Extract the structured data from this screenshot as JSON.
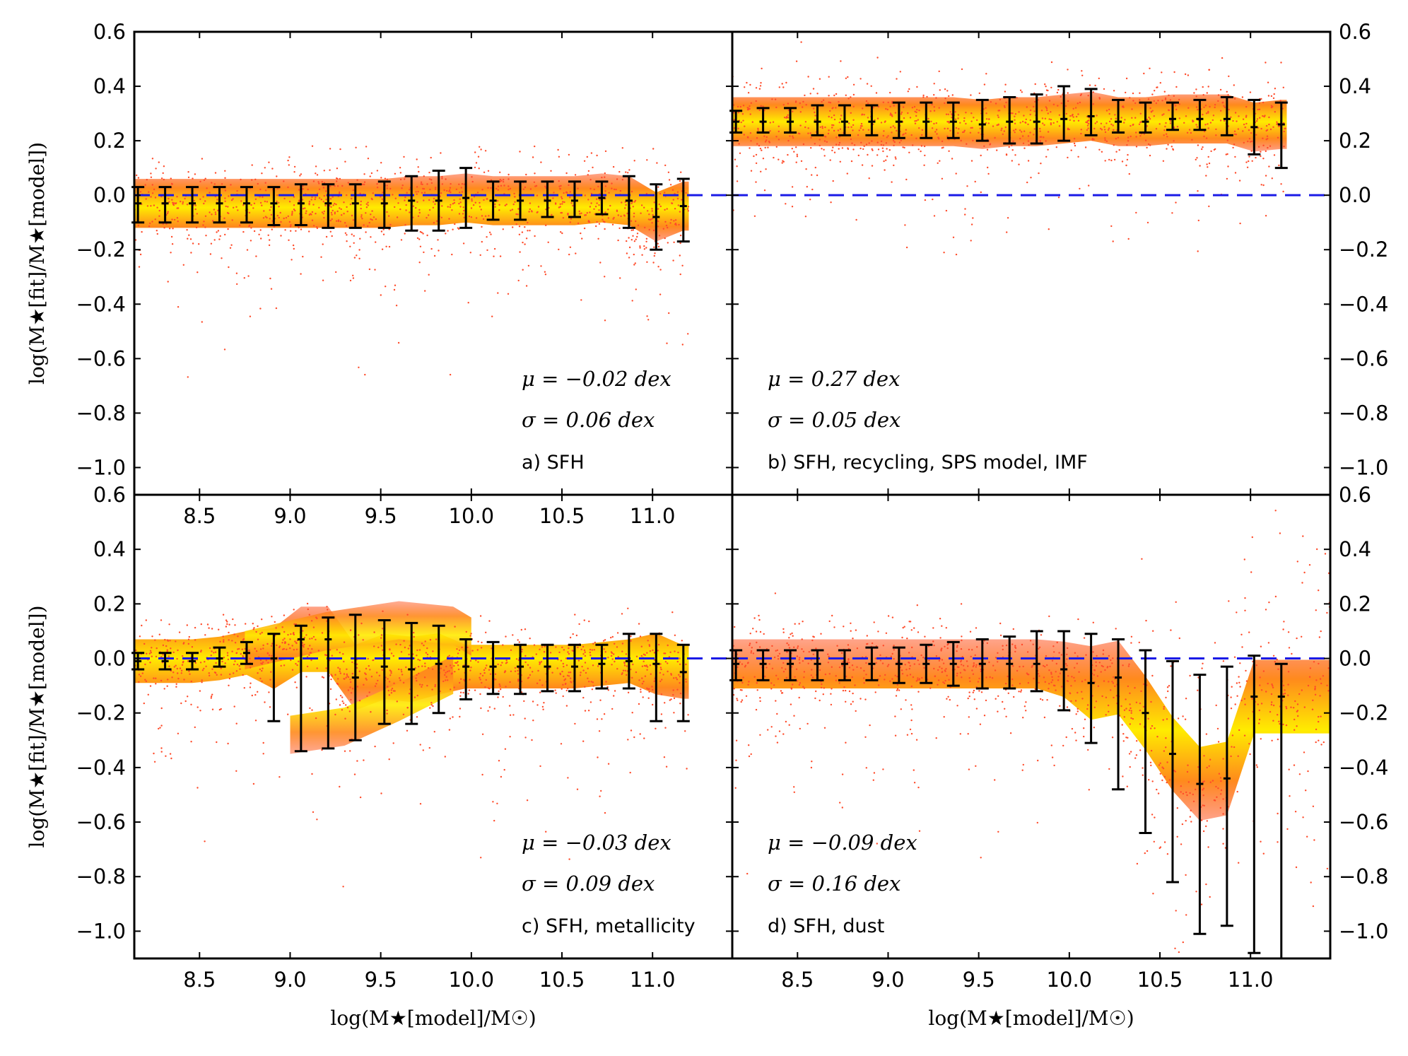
{
  "colors": {
    "zero_line": "#1a1ae6",
    "errorbar": "#000000",
    "scatter_outer": "#ff4b2a",
    "scatter_mid": "#ff8a1c",
    "scatter_core": "#ffe600"
  },
  "chart_data": [
    {
      "id": "a",
      "type": "scatter",
      "label": "a) SFH",
      "mu_text": "μ = −0.02 dex",
      "sigma_text": "σ = 0.06 dex",
      "xlim": [
        8.14,
        11.44
      ],
      "ylim": [
        -1.1,
        0.6
      ],
      "xticks": [
        "8.5",
        "9.0",
        "9.5",
        "10.0",
        "10.5",
        "11.0"
      ],
      "yticks": [
        "0.6",
        "0.4",
        "0.2",
        "0.0",
        "−0.2",
        "−0.4",
        "−0.6",
        "−0.8",
        "−1.0"
      ],
      "ylabel": "log(M★[fit]/M★[model])",
      "xlabel": "",
      "zero_line": 0.0,
      "errorbars": {
        "x": [
          8.16,
          8.31,
          8.46,
          8.61,
          8.76,
          8.91,
          9.06,
          9.21,
          9.36,
          9.52,
          9.67,
          9.82,
          9.97,
          10.12,
          10.27,
          10.42,
          10.57,
          10.72,
          10.87,
          11.02,
          11.17
        ],
        "y": [
          -0.03,
          -0.03,
          -0.03,
          -0.03,
          -0.03,
          -0.03,
          -0.03,
          -0.03,
          -0.03,
          -0.03,
          -0.02,
          -0.02,
          -0.01,
          -0.02,
          -0.02,
          -0.02,
          -0.02,
          -0.01,
          -0.02,
          -0.08,
          -0.04
        ],
        "lo": [
          -0.1,
          -0.1,
          -0.1,
          -0.1,
          -0.1,
          -0.11,
          -0.11,
          -0.12,
          -0.12,
          -0.12,
          -0.13,
          -0.13,
          -0.12,
          -0.09,
          -0.09,
          -0.08,
          -0.08,
          -0.07,
          -0.12,
          -0.2,
          -0.17
        ],
        "hi": [
          0.03,
          0.03,
          0.03,
          0.03,
          0.03,
          0.03,
          0.04,
          0.04,
          0.04,
          0.05,
          0.07,
          0.09,
          0.1,
          0.05,
          0.05,
          0.05,
          0.05,
          0.05,
          0.07,
          0.04,
          0.06
        ]
      },
      "scatter_band": {
        "center": -0.02,
        "halfwidth": 0.09,
        "xmin": 8.14,
        "xmax": 11.2,
        "outlier_spread": 0.45
      }
    },
    {
      "id": "b",
      "type": "scatter",
      "label": "b) SFH, recycling, SPS model, IMF",
      "mu_text": "μ = 0.27 dex",
      "sigma_text": "σ = 0.05 dex",
      "xlim": [
        8.14,
        11.44
      ],
      "ylim": [
        -1.1,
        0.6
      ],
      "xticks": [],
      "yticks": [
        "0.6",
        "0.4",
        "0.2",
        "0.0",
        "−0.2",
        "−0.4",
        "−0.6",
        "−0.8",
        "−1.0"
      ],
      "ylabel": "",
      "xlabel": "",
      "zero_line": 0.0,
      "errorbars": {
        "x": [
          8.16,
          8.31,
          8.46,
          8.61,
          8.76,
          8.91,
          9.06,
          9.21,
          9.36,
          9.52,
          9.67,
          9.82,
          9.97,
          10.12,
          10.27,
          10.42,
          10.57,
          10.72,
          10.87,
          11.02,
          11.17
        ],
        "y": [
          0.27,
          0.27,
          0.27,
          0.27,
          0.27,
          0.27,
          0.27,
          0.27,
          0.27,
          0.26,
          0.27,
          0.27,
          0.28,
          0.29,
          0.27,
          0.27,
          0.28,
          0.28,
          0.28,
          0.25,
          0.26
        ],
        "lo": [
          0.23,
          0.23,
          0.23,
          0.22,
          0.22,
          0.22,
          0.21,
          0.21,
          0.21,
          0.2,
          0.19,
          0.19,
          0.2,
          0.22,
          0.23,
          0.23,
          0.24,
          0.24,
          0.22,
          0.15,
          0.1
        ],
        "hi": [
          0.31,
          0.32,
          0.32,
          0.33,
          0.33,
          0.33,
          0.34,
          0.34,
          0.34,
          0.35,
          0.36,
          0.37,
          0.4,
          0.39,
          0.35,
          0.34,
          0.34,
          0.35,
          0.36,
          0.35,
          0.34
        ]
      },
      "scatter_band": {
        "center": 0.27,
        "halfwidth": 0.09,
        "xmin": 8.14,
        "xmax": 11.2,
        "outlier_spread": 0.4
      }
    },
    {
      "id": "c",
      "type": "scatter",
      "label": "c) SFH, metallicity",
      "mu_text": "μ = −0.03 dex",
      "sigma_text": "σ = 0.09 dex",
      "xlim": [
        8.14,
        11.44
      ],
      "ylim": [
        -1.1,
        0.6
      ],
      "xticks": [
        "8.5",
        "9.0",
        "9.5",
        "10.0",
        "10.5",
        "11.0"
      ],
      "yticks": [
        "0.6",
        "0.4",
        "0.2",
        "0.0",
        "−0.2",
        "−0.4",
        "−0.6",
        "−0.8",
        "−1.0"
      ],
      "ylabel": "log(M★[fit]/M★[model])",
      "xlabel": "log(M★[model]/M☉)",
      "zero_line": 0.0,
      "errorbars": {
        "x": [
          8.16,
          8.31,
          8.46,
          8.61,
          8.76,
          8.91,
          9.06,
          9.21,
          9.36,
          9.52,
          9.67,
          9.82,
          9.97,
          10.12,
          10.27,
          10.42,
          10.57,
          10.72,
          10.87,
          11.02,
          11.17
        ],
        "y": [
          -0.01,
          -0.01,
          -0.01,
          0.0,
          0.02,
          0.0,
          0.07,
          0.07,
          -0.07,
          -0.03,
          -0.04,
          -0.02,
          -0.03,
          -0.03,
          -0.03,
          -0.03,
          -0.03,
          -0.02,
          -0.01,
          -0.02,
          -0.05
        ],
        "lo": [
          -0.04,
          -0.04,
          -0.04,
          -0.03,
          -0.02,
          -0.23,
          -0.34,
          -0.33,
          -0.3,
          -0.24,
          -0.24,
          -0.2,
          -0.15,
          -0.13,
          -0.13,
          -0.12,
          -0.12,
          -0.11,
          -0.11,
          -0.23,
          -0.23
        ],
        "hi": [
          0.02,
          0.02,
          0.02,
          0.04,
          0.06,
          0.09,
          0.12,
          0.15,
          0.16,
          0.14,
          0.13,
          0.12,
          0.07,
          0.06,
          0.05,
          0.05,
          0.05,
          0.05,
          0.09,
          0.09,
          0.05
        ]
      },
      "scatter_band": {
        "center": -0.02,
        "halfwidth": 0.08,
        "xmin": 8.14,
        "xmax": 11.2,
        "outlier_spread": 0.5
      }
    },
    {
      "id": "d",
      "type": "scatter",
      "label": "d) SFH, dust",
      "mu_text": "μ = −0.09 dex",
      "sigma_text": "σ = 0.16 dex",
      "xlim": [
        8.14,
        11.44
      ],
      "ylim": [
        -1.1,
        0.6
      ],
      "xticks": [
        "8.5",
        "9.0",
        "9.5",
        "10.0",
        "10.5",
        "11.0"
      ],
      "yticks": [
        "0.6",
        "0.4",
        "0.2",
        "0.0",
        "−0.2",
        "−0.4",
        "−0.6",
        "−0.8",
        "−1.0"
      ],
      "ylabel": "",
      "xlabel": "log(M★[model]/M☉)",
      "zero_line": 0.0,
      "errorbars": {
        "x": [
          8.16,
          8.31,
          8.46,
          8.61,
          8.76,
          8.91,
          9.06,
          9.21,
          9.36,
          9.52,
          9.67,
          9.82,
          9.97,
          10.12,
          10.27,
          10.42,
          10.57,
          10.72,
          10.87,
          11.02,
          11.17
        ],
        "y": [
          -0.02,
          -0.02,
          -0.02,
          -0.02,
          -0.02,
          -0.02,
          -0.02,
          -0.02,
          -0.02,
          -0.02,
          -0.02,
          -0.02,
          -0.04,
          -0.09,
          -0.07,
          -0.2,
          -0.35,
          -0.46,
          -0.44,
          -0.14,
          -0.14
        ],
        "lo": [
          -0.08,
          -0.08,
          -0.08,
          -0.08,
          -0.08,
          -0.08,
          -0.09,
          -0.09,
          -0.1,
          -0.11,
          -0.11,
          -0.12,
          -0.19,
          -0.31,
          -0.48,
          -0.64,
          -0.82,
          -1.01,
          -0.98,
          -1.08,
          -1.1
        ],
        "hi": [
          0.03,
          0.03,
          0.03,
          0.03,
          0.03,
          0.04,
          0.04,
          0.05,
          0.06,
          0.07,
          0.08,
          0.1,
          0.1,
          0.09,
          0.07,
          0.03,
          -0.01,
          -0.06,
          -0.03,
          0.01,
          -0.02
        ]
      },
      "scatter_band": {
        "center": -0.02,
        "halfwidth": 0.09,
        "xmin": 8.14,
        "xmax": 11.44,
        "outlier_spread": 0.6
      }
    }
  ]
}
